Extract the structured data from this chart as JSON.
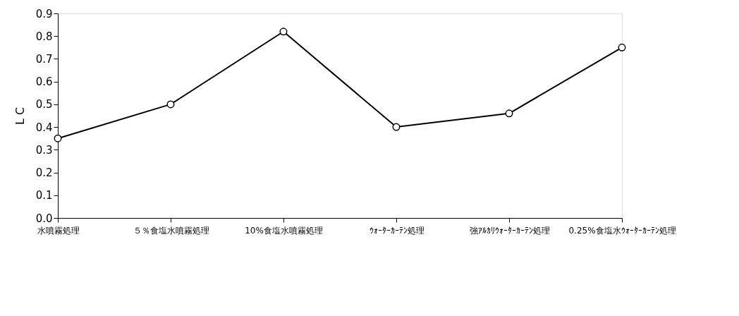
{
  "chart_data": {
    "type": "line",
    "ylabel": "L C",
    "categories": [
      "水噴霧処理",
      "５％食塩水噴霧処理",
      "10%食塩水噴霧処理",
      "ｳｫｰﾀｰｶｰﾃﾝ処理",
      "強ｱﾙｶﾘｳｫｰﾀｰｶｰﾃﾝ処理",
      "0.25%食塩水ｳｫｰﾀｰｶｰﾃﾝ処理"
    ],
    "series": [
      {
        "color": "#000000",
        "values": [
          0.35,
          0.5,
          0.82,
          0.4,
          0.46,
          0.75
        ]
      }
    ],
    "ylim": [
      0,
      0.9
    ],
    "yticks": [
      {
        "value": 0,
        "label": "0.0"
      },
      0.1,
      0.2,
      0.3,
      0.4,
      0.5,
      0.6,
      0.7,
      0.8,
      0.9
    ],
    "grid": false,
    "marker": "circle",
    "line_style": "solid"
  }
}
